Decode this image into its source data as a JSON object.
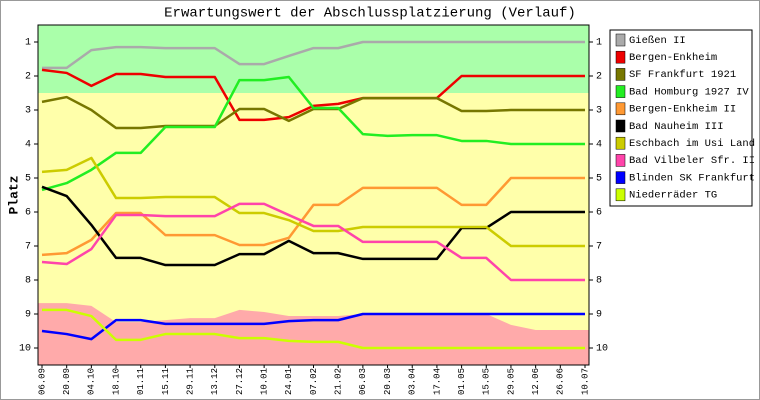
{
  "chart_data": {
    "type": "line",
    "title": "Erwartungswert der Abschlussplatzierung (Verlauf)",
    "y_label": "Platz",
    "categories": [
      "06.09",
      "20.09",
      "04.10",
      "18.10",
      "01.11",
      "15.11",
      "29.11",
      "13.12",
      "27.12",
      "10.01",
      "24.01",
      "07.02",
      "21.02",
      "06.03",
      "20.03",
      "03.04",
      "17.04",
      "01.05",
      "15.05",
      "29.05",
      "12.06",
      "26.06",
      "10.07"
    ],
    "ylim": [
      0.5,
      10.5
    ],
    "y_inverted": true,
    "yticks": [
      1,
      2,
      3,
      4,
      5,
      6,
      7,
      8,
      9,
      10
    ],
    "legend": "right",
    "background": {
      "middle_color": "#ffffaa",
      "upper": {
        "color": "#aaffaa",
        "values": [
          2.5,
          2.5,
          2.5,
          2.5,
          2.5,
          2.5,
          2.5,
          2.5,
          2.5,
          2.5,
          2.5,
          2.5,
          2.5,
          2.5,
          2.5,
          2.5,
          2.5,
          2.5,
          2.5,
          2.5,
          2.5,
          2.5,
          2.5
        ]
      },
      "lower": {
        "color": "#ffaaaa",
        "values": [
          8.68,
          8.68,
          8.76,
          9.24,
          9.24,
          9.18,
          9.12,
          9.12,
          8.88,
          8.94,
          9.06,
          9.06,
          9.06,
          9,
          9,
          9,
          9,
          9,
          9,
          9.32,
          9.47,
          9.47,
          9.47
        ]
      }
    },
    "series": [
      {
        "name": "Gießen II",
        "color": "#aaaaaa",
        "values": [
          1.76,
          1.76,
          1.24,
          1.15,
          1.15,
          1.18,
          1.18,
          1.18,
          1.65,
          1.65,
          1.41,
          1.18,
          1.18,
          1,
          1,
          1,
          1,
          1,
          1,
          1,
          1,
          1,
          1
        ]
      },
      {
        "name": "Bergen-Enkheim",
        "color": "#ee0000",
        "values": [
          1.82,
          1.91,
          2.29,
          1.94,
          1.94,
          2.03,
          2.03,
          2.03,
          3.29,
          3.29,
          3.21,
          2.88,
          2.82,
          2.65,
          2.65,
          2.65,
          2.65,
          2,
          2,
          2,
          2,
          2,
          2
        ]
      },
      {
        "name": "SF Frankfurt 1921",
        "color": "#777700",
        "values": [
          2.76,
          2.62,
          3,
          3.53,
          3.53,
          3.47,
          3.47,
          3.47,
          2.97,
          2.97,
          3.32,
          2.97,
          2.97,
          2.65,
          2.65,
          2.65,
          2.65,
          3.03,
          3.03,
          3,
          3,
          3,
          3
        ]
      },
      {
        "name": "Bad Homburg 1927 IV",
        "color": "#22ee22",
        "values": [
          5.35,
          5.15,
          4.76,
          4.26,
          4.26,
          3.5,
          3.5,
          3.5,
          2.12,
          2.12,
          2.03,
          2.94,
          2.94,
          3.71,
          3.76,
          3.74,
          3.74,
          3.91,
          3.91,
          4,
          4,
          4,
          4
        ]
      },
      {
        "name": "Bergen-Enkheim II",
        "color": "#ff9933",
        "values": [
          7.26,
          7.21,
          6.82,
          6.03,
          6.03,
          6.68,
          6.68,
          6.68,
          6.97,
          6.97,
          6.76,
          5.79,
          5.79,
          5.29,
          5.29,
          5.29,
          5.29,
          5.79,
          5.79,
          5,
          5,
          5,
          5
        ]
      },
      {
        "name": "Bad Nauheim III",
        "color": "#000000",
        "values": [
          5.26,
          5.53,
          6.38,
          7.35,
          7.35,
          7.56,
          7.56,
          7.56,
          7.24,
          7.24,
          6.85,
          7.21,
          7.21,
          7.38,
          7.38,
          7.38,
          7.38,
          6.47,
          6.47,
          6,
          6,
          6,
          6
        ]
      },
      {
        "name": "Eschbach im Usi Land",
        "color": "#cccc00",
        "values": [
          4.82,
          4.76,
          4.41,
          5.59,
          5.59,
          5.56,
          5.56,
          5.56,
          6.03,
          6.03,
          6.24,
          6.56,
          6.56,
          6.44,
          6.44,
          6.44,
          6.44,
          6.44,
          6.44,
          7,
          7,
          7,
          7
        ]
      },
      {
        "name": "Bad Vilbeler Sfr. II",
        "color": "#ff44aa",
        "values": [
          7.47,
          7.53,
          7.09,
          6.09,
          6.09,
          6.12,
          6.12,
          6.12,
          5.76,
          5.76,
          6.09,
          6.41,
          6.41,
          6.88,
          6.88,
          6.88,
          6.88,
          7.35,
          7.35,
          8,
          8,
          8,
          8
        ]
      },
      {
        "name": "Blinden SK Frankfurt",
        "color": "#0000ff",
        "values": [
          9.5,
          9.59,
          9.74,
          9.18,
          9.18,
          9.29,
          9.29,
          9.29,
          9.29,
          9.29,
          9.21,
          9.18,
          9.18,
          9,
          9,
          9,
          9,
          9,
          9,
          9,
          9,
          9,
          9
        ]
      },
      {
        "name": "Niederräder TG",
        "color": "#ccff00",
        "values": [
          8.88,
          8.88,
          9.06,
          9.76,
          9.76,
          9.59,
          9.59,
          9.59,
          9.71,
          9.71,
          9.79,
          9.82,
          9.82,
          10,
          10,
          10,
          10,
          10,
          10,
          10,
          10,
          10,
          10
        ]
      }
    ]
  }
}
